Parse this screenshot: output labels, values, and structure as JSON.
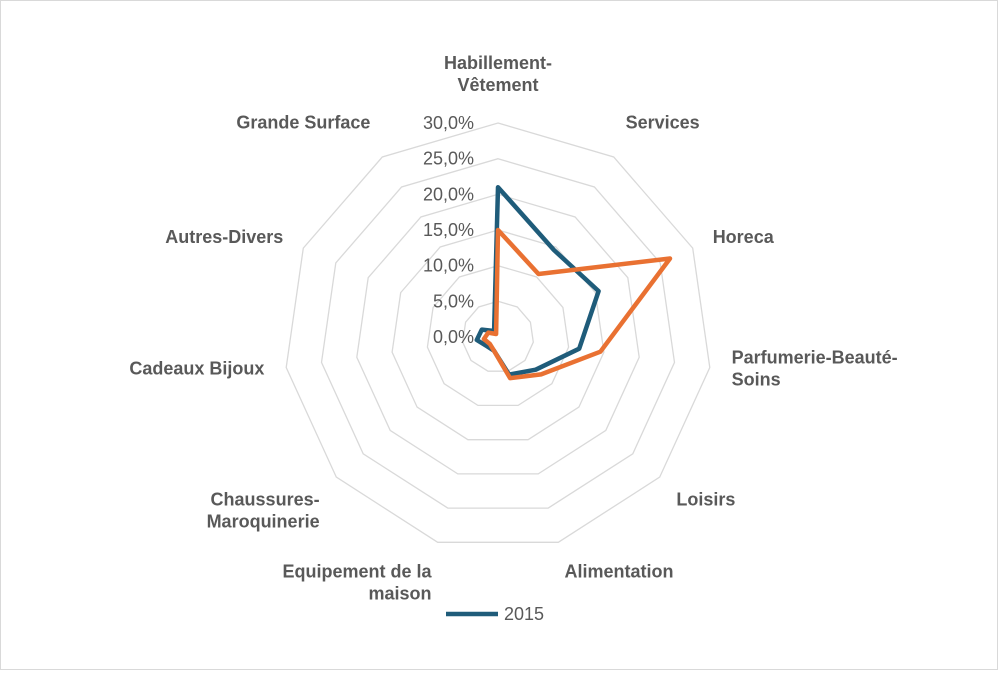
{
  "chart_data": {
    "type": "radar",
    "categories": [
      [
        "Habillement-",
        "Vêtement"
      ],
      [
        "Services"
      ],
      [
        "Horeca"
      ],
      [
        "Parfumerie-Beauté-",
        "Soins"
      ],
      [
        "Loisirs"
      ],
      [
        "Alimentation"
      ],
      [
        "Equipement de la",
        "maison"
      ],
      [
        "Chaussures-",
        "Maroquinerie"
      ],
      [
        "Cadeaux Bijoux"
      ],
      [
        "Autres-Divers"
      ],
      [
        "Grande Surface"
      ]
    ],
    "ticks": [
      "0,0%",
      "5,0%",
      "10,0%",
      "15,0%",
      "20,0%",
      "25,0%",
      "30,0%"
    ],
    "rlim": [
      0,
      30
    ],
    "series": [
      {
        "name": "2015",
        "color": "#1f5c7a",
        "values": [
          21.0,
          14.5,
          15.5,
          11.5,
          7.0,
          5.5,
          2.0,
          2.0,
          3.0,
          2.5,
          1.0
        ]
      },
      {
        "name": "",
        "color": "#e97132",
        "values": [
          15.0,
          10.5,
          26.5,
          14.5,
          8.0,
          6.0,
          2.0,
          1.5,
          2.0,
          1.5,
          0.5
        ]
      }
    ],
    "legend_position": "bottom",
    "grid": true
  }
}
